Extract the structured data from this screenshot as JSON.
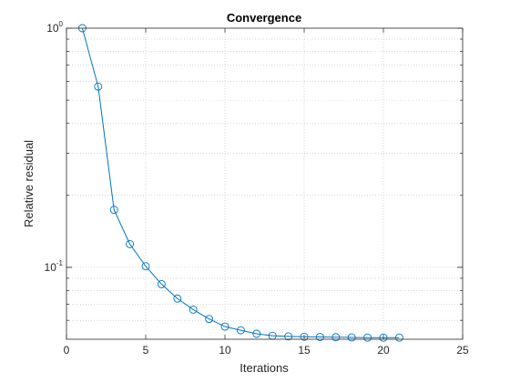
{
  "chart_data": {
    "type": "line",
    "title": "Convergence",
    "xlabel": "Iterations",
    "ylabel": "Relative residual",
    "xlim": [
      0,
      25
    ],
    "ylim": [
      0.05,
      1
    ],
    "yscale": "log",
    "grid": true,
    "minor_grid_y": true,
    "marker": "circle",
    "x_ticks": [
      0,
      5,
      10,
      15,
      20,
      25
    ],
    "x_tick_labels": [
      "0",
      "5",
      "10",
      "15",
      "20",
      "25"
    ],
    "y_ticks": [
      {
        "value": 1,
        "base": "10",
        "exp": "0"
      },
      {
        "value": 0.1,
        "base": "10",
        "exp": "-1"
      }
    ],
    "series": [
      {
        "color": "#0072BD",
        "x": [
          1,
          2,
          3,
          4,
          5,
          6,
          7,
          8,
          9,
          10,
          11,
          12,
          13,
          14,
          15,
          16,
          17,
          18,
          19,
          20,
          21
        ],
        "y": [
          1.0,
          0.57,
          0.174,
          0.125,
          0.101,
          0.085,
          0.074,
          0.0665,
          0.0608,
          0.0565,
          0.0545,
          0.0527,
          0.0517,
          0.0514,
          0.0512,
          0.0511,
          0.051,
          0.0509,
          0.0508,
          0.0508,
          0.0508
        ]
      }
    ]
  }
}
